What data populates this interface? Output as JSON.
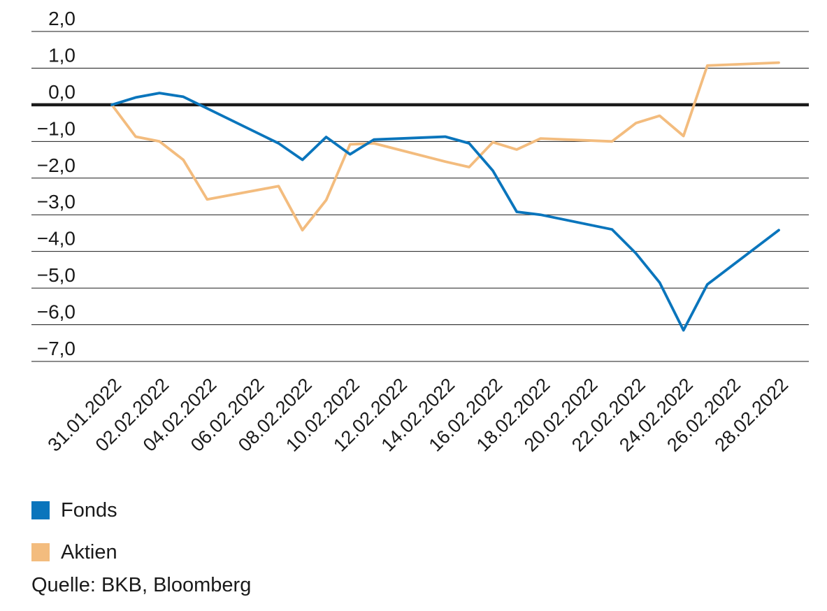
{
  "chart_data": {
    "type": "line",
    "title": "",
    "xlabel": "",
    "ylabel": "",
    "ylim": [
      -7.0,
      2.0
    ],
    "y_ticks": [
      "2,0",
      "1,0",
      "0,0",
      "−1,0",
      "−2,0",
      "−3,0",
      "−4,0",
      "−5,0",
      "−6,0",
      "−7,0"
    ],
    "y_tick_values": [
      2,
      1,
      0,
      -1,
      -2,
      -3,
      -4,
      -5,
      -6,
      -7
    ],
    "x_ticks": [
      "31.01.2022",
      "02.02.2022",
      "04.02.2022",
      "06.02.2022",
      "08.02.2022",
      "10.02.2022",
      "12.02.2022",
      "14.02.2022",
      "16.02.2022",
      "18.02.2022",
      "20.02.2022",
      "22.02.2022",
      "24.02.2022",
      "26.02.2022",
      "28.02.2022"
    ],
    "grid": true,
    "legend_position": "bottom-left",
    "series": [
      {
        "name": "Fonds",
        "color": "#0a75bc",
        "points": [
          [
            "31.01.2022",
            0.0
          ],
          [
            "01.02.2022",
            0.2
          ],
          [
            "02.02.2022",
            0.32
          ],
          [
            "03.02.2022",
            0.22
          ],
          [
            "04.02.2022",
            -0.1
          ],
          [
            "07.02.2022",
            -1.05
          ],
          [
            "08.02.2022",
            -1.5
          ],
          [
            "09.02.2022",
            -0.88
          ],
          [
            "10.02.2022",
            -1.35
          ],
          [
            "11.02.2022",
            -0.95
          ],
          [
            "14.02.2022",
            -0.87
          ],
          [
            "15.02.2022",
            -1.05
          ],
          [
            "16.02.2022",
            -1.8
          ],
          [
            "17.02.2022",
            -2.92
          ],
          [
            "18.02.2022",
            -3.0
          ],
          [
            "21.02.2022",
            -3.4
          ],
          [
            "22.02.2022",
            -4.05
          ],
          [
            "23.02.2022",
            -4.85
          ],
          [
            "24.02.2022",
            -6.15
          ],
          [
            "25.02.2022",
            -4.9
          ],
          [
            "28.02.2022",
            -3.42
          ]
        ]
      },
      {
        "name": "Aktien",
        "color": "#f3bc7e",
        "points": [
          [
            "31.01.2022",
            0.0
          ],
          [
            "01.02.2022",
            -0.87
          ],
          [
            "02.02.2022",
            -1.0
          ],
          [
            "03.02.2022",
            -1.5
          ],
          [
            "04.02.2022",
            -2.58
          ],
          [
            "07.02.2022",
            -2.22
          ],
          [
            "08.02.2022",
            -3.42
          ],
          [
            "09.02.2022",
            -2.6
          ],
          [
            "10.02.2022",
            -1.08
          ],
          [
            "11.02.2022",
            -1.05
          ],
          [
            "14.02.2022",
            -1.55
          ],
          [
            "15.02.2022",
            -1.7
          ],
          [
            "16.02.2022",
            -1.02
          ],
          [
            "17.02.2022",
            -1.22
          ],
          [
            "18.02.2022",
            -0.92
          ],
          [
            "21.02.2022",
            -1.0
          ],
          [
            "22.02.2022",
            -0.5
          ],
          [
            "23.02.2022",
            -0.3
          ],
          [
            "24.02.2022",
            -0.85
          ],
          [
            "25.02.2022",
            1.07
          ],
          [
            "28.02.2022",
            1.15
          ]
        ]
      }
    ]
  },
  "legend": {
    "items": [
      {
        "label": "Fonds",
        "color": "#0a75bc"
      },
      {
        "label": "Aktien",
        "color": "#f3bc7e"
      }
    ]
  },
  "source": "Quelle: BKB, Bloomberg"
}
